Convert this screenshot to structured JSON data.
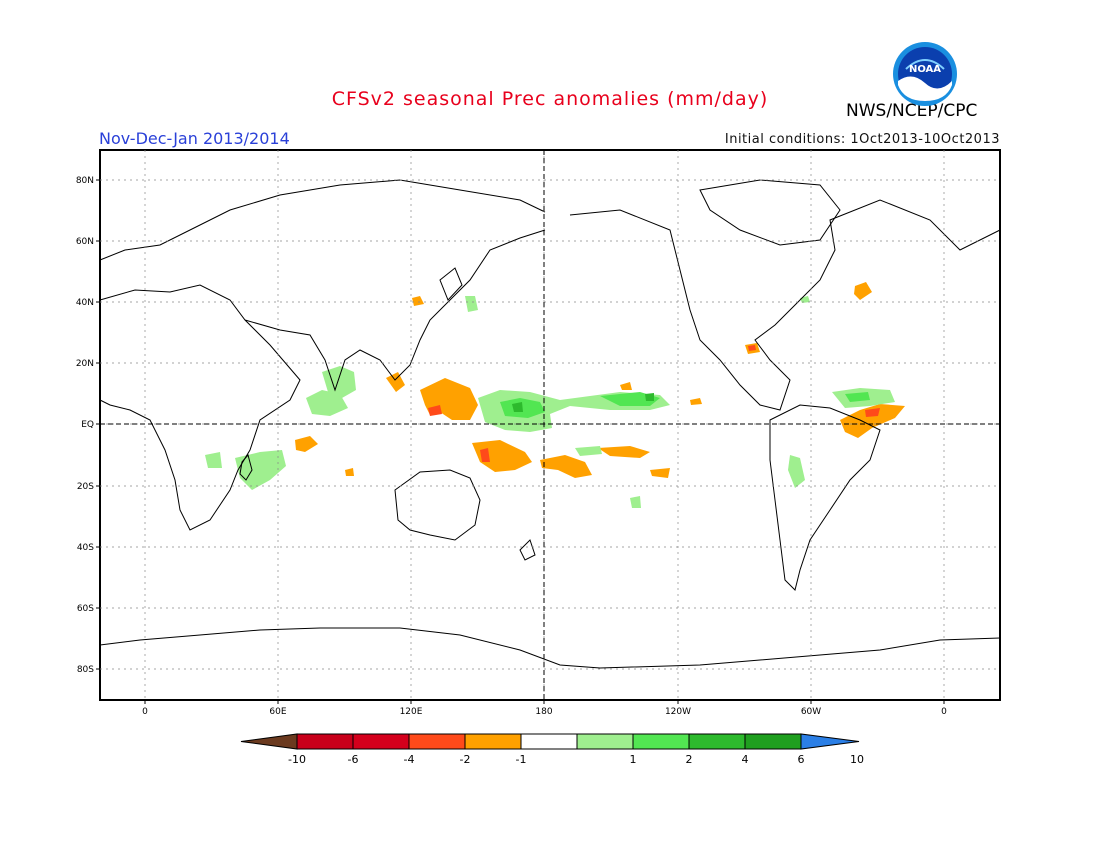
{
  "title": "CFSv2 seasonal Prec anomalies (mm/day)",
  "period": "Nov-Dec-Jan 2013/2014",
  "initial_conditions": "Initial conditions: 1Oct2013-10Oct2013",
  "agency": "NWS/NCEP/CPC",
  "logo_text": "NOAA",
  "map": {
    "lat_labels": [
      "80N",
      "60N",
      "40N",
      "20N",
      "EQ",
      "20S",
      "40S",
      "60S",
      "80S"
    ],
    "lon_labels": [
      "0",
      "60E",
      "120E",
      "180",
      "120W",
      "60W",
      "0"
    ],
    "grid": "dotted",
    "center_meridian": "180"
  },
  "colorbar": {
    "labels": [
      "-10",
      "-6",
      "-4",
      "-2",
      "-1",
      "1",
      "2",
      "4",
      "6",
      "10"
    ],
    "colors": [
      "#6b3a1f",
      "#c8001a",
      "#d4001c",
      "#ff4a1a",
      "#ffa100",
      "#ffffff",
      "#9fef8f",
      "#52e652",
      "#2dba2d",
      "#1f9f1f",
      "#2b7fe6"
    ]
  },
  "anomaly_colors": {
    "dry_light": "#ffa100",
    "dry_strong": "#ff4a1a",
    "wet_light": "#9fef8f",
    "wet_medium": "#52e652",
    "wet_strong": "#2dba2d"
  }
}
